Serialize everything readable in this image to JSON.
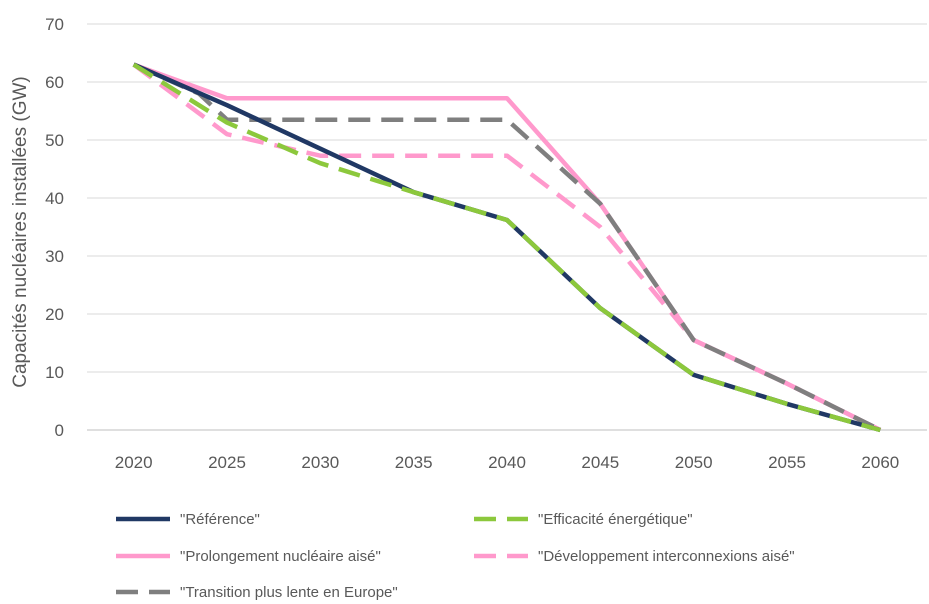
{
  "chart_data": {
    "type": "line",
    "ylabel": "Capacités nucléaires installées (GW)",
    "xlabel": "",
    "title": "",
    "x": [
      2020,
      2025,
      2030,
      2035,
      2040,
      2045,
      2050,
      2055,
      2060
    ],
    "xlim": [
      2017.5,
      2062.5
    ],
    "ylim": [
      0,
      70
    ],
    "yticks": [
      0,
      10,
      20,
      30,
      40,
      50,
      60,
      70
    ],
    "grid": true,
    "legend_position": "bottom",
    "series": [
      {
        "name": "\"Référence\"",
        "color": "#203864",
        "dashed": false,
        "x": [
          2020,
          2025,
          2030,
          2035,
          2040,
          2045,
          2050,
          2055,
          2060
        ],
        "values": [
          63,
          56,
          48.5,
          41,
          36.2,
          21,
          9.5,
          4.5,
          0
        ]
      },
      {
        "name": "\"Efficacité énergétique\"",
        "color": "#8CC83C",
        "dashed": true,
        "x": [
          2020,
          2025,
          2030,
          2035,
          2040,
          2045,
          2050,
          2055,
          2060
        ],
        "values": [
          63,
          53,
          46,
          41,
          36.2,
          21,
          9.5,
          4.5,
          0
        ]
      },
      {
        "name": "\"Prolongement nucléaire aisé\"",
        "color": "#FF99CC",
        "dashed": false,
        "x": [
          2020,
          2025,
          2030,
          2035,
          2040,
          2045,
          2050,
          2055,
          2060
        ],
        "values": [
          63,
          57.2,
          57.2,
          57.2,
          57.2,
          39,
          15.5,
          8,
          0
        ]
      },
      {
        "name": "\"Développement interconnexions aisé\"",
        "color": "#FF99CC",
        "dashed": true,
        "x": [
          2020,
          2025,
          2030,
          2035,
          2040,
          2045,
          2050,
          2055,
          2060
        ],
        "values": [
          63,
          51,
          47.3,
          47.3,
          47.3,
          35,
          15.5,
          8,
          0
        ]
      },
      {
        "name": "\"Transition plus lente en Europe\"",
        "color": "#7F7F7F",
        "dashed": true,
        "x": [
          2020,
          2023.5,
          2025,
          2030,
          2035,
          2040,
          2045,
          2050,
          2055,
          2060
        ],
        "values": [
          63,
          58,
          53.5,
          53.5,
          53.5,
          53.5,
          39,
          15.5,
          8,
          0
        ]
      }
    ]
  }
}
